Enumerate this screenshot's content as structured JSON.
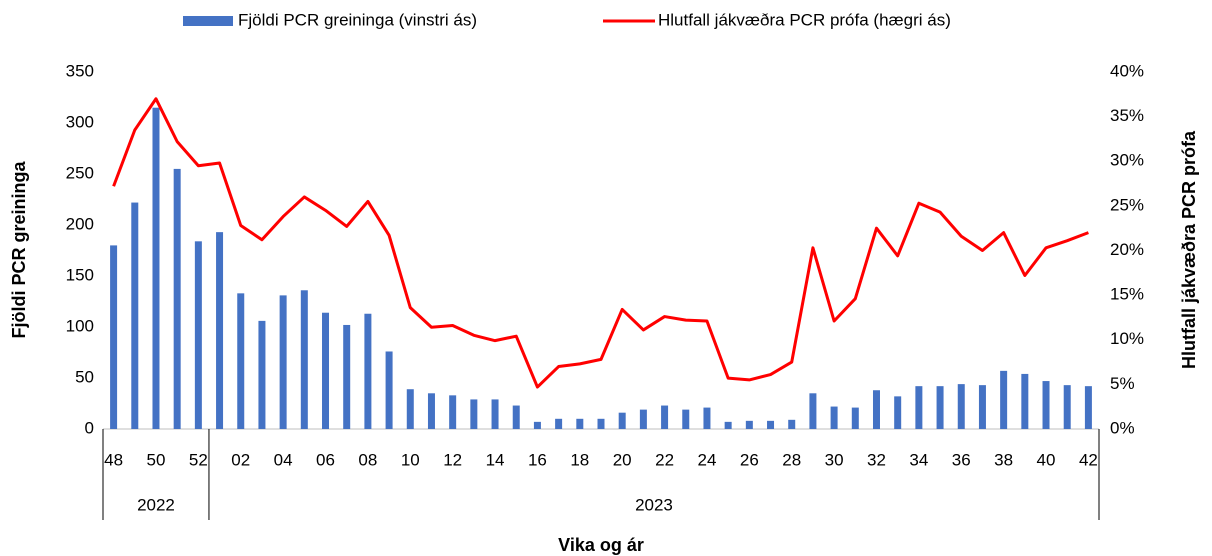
{
  "chart_data": {
    "type": "bar_line",
    "x_label": "Vika og ár",
    "y_label": "Fjöldi PCR greininga",
    "y2_label": "Hlutfall jákvæðra PCR prófa",
    "groups": [
      {
        "label": "2022",
        "categories": [
          "48",
          null,
          "50",
          null,
          "52"
        ]
      },
      {
        "label": "2023",
        "categories": [
          null,
          "02",
          null,
          "04",
          null,
          "06",
          null,
          "08",
          null,
          "10",
          null,
          "12",
          null,
          "14",
          null,
          "16",
          null,
          "18",
          null,
          "20",
          null,
          "22",
          null,
          "24",
          null,
          "26",
          null,
          "28",
          null,
          "30",
          null,
          "32",
          null,
          "34",
          null,
          "36",
          null,
          "38",
          null,
          "40",
          null,
          "42"
        ]
      }
    ],
    "series": [
      {
        "name": "Fjöldi PCR greininga (vinstri ás)",
        "type": "bar",
        "color": "#4472c4",
        "axis": "y",
        "values": [
          180,
          222,
          315,
          255,
          184,
          193,
          133,
          106,
          131,
          136,
          114,
          102,
          113,
          76,
          39,
          35,
          33,
          29,
          29,
          23,
          7,
          10,
          10,
          10,
          16,
          19,
          23,
          19,
          21,
          7,
          8,
          8,
          9,
          35,
          22,
          21,
          38,
          32,
          42,
          42,
          44,
          43,
          57,
          54,
          47,
          43,
          42
        ]
      },
      {
        "name": "Hlutfall jákvæðra PCR prófa (hægri ás)",
        "type": "line",
        "color": "#ff0000",
        "axis": "y2",
        "values": [
          27.2,
          33.5,
          37,
          32.2,
          29.5,
          29.8,
          22.8,
          21.2,
          23.8,
          26,
          24.5,
          22.7,
          25.5,
          21.7,
          13.6,
          11.4,
          11.6,
          10.5,
          9.9,
          10.4,
          4.7,
          7,
          7.3,
          7.8,
          13.4,
          11.1,
          12.6,
          12.2,
          12.1,
          5.7,
          5.5,
          6.1,
          7.5,
          20.3,
          12.1,
          14.6,
          22.5,
          19.4,
          25.3,
          24.3,
          21.6,
          20,
          22,
          17.2,
          20.3,
          21.1,
          22
        ]
      }
    ],
    "ylim": [
      0,
      350
    ],
    "yticks": [
      0,
      50,
      100,
      150,
      200,
      250,
      300,
      350
    ],
    "y2lim": [
      0,
      40
    ],
    "y2ticks": [
      {
        "value": 0,
        "label": "0%"
      },
      {
        "value": 5,
        "label": "5%"
      },
      {
        "value": 10,
        "label": "10%"
      },
      {
        "value": 15,
        "label": "15%"
      },
      {
        "value": 20,
        "label": "20%"
      },
      {
        "value": 25,
        "label": "25%"
      },
      {
        "value": 30,
        "label": "30%"
      },
      {
        "value": 35,
        "label": "35%"
      },
      {
        "value": 40,
        "label": "40%"
      }
    ],
    "grid": false,
    "legend": "top"
  }
}
